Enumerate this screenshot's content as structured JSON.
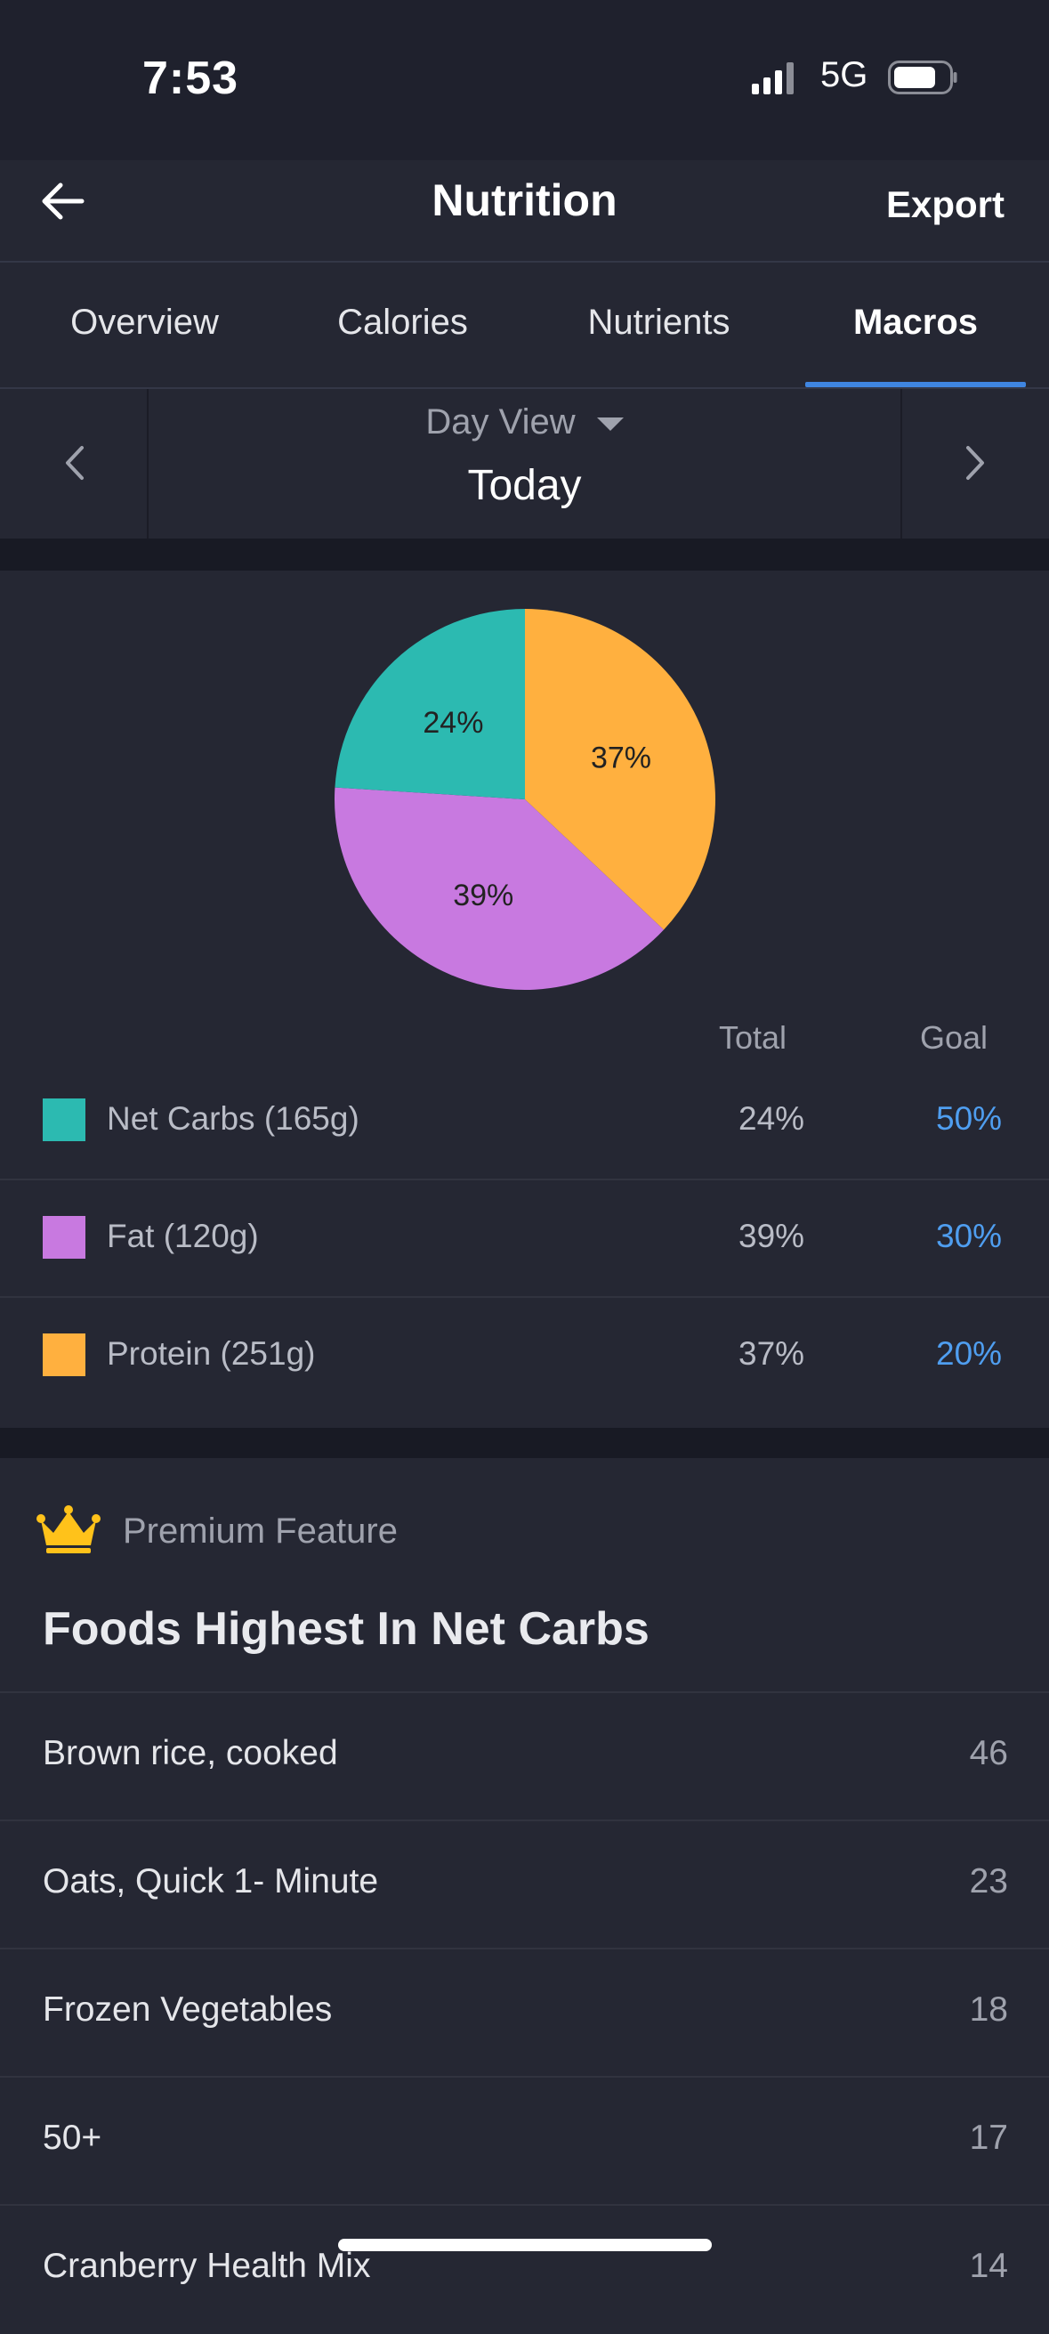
{
  "status_bar": {
    "time": "7:53",
    "network": "5G",
    "signal_icon": "signal-bars-icon",
    "battery_icon": "battery-icon"
  },
  "nav": {
    "title": "Nutrition",
    "export_label": "Export",
    "back_icon": "arrow-left-icon"
  },
  "tabs": [
    {
      "label": "Overview",
      "active": false
    },
    {
      "label": "Calories",
      "active": false
    },
    {
      "label": "Nutrients",
      "active": false
    },
    {
      "label": "Macros",
      "active": true
    }
  ],
  "day_selector": {
    "mode": "Day View",
    "date": "Today",
    "prev_icon": "chevron-left-icon",
    "next_icon": "chevron-right-icon"
  },
  "chart_data": {
    "type": "pie",
    "slices": [
      {
        "name": "Protein",
        "value": 37,
        "label": "37%",
        "color": "#ffb03f"
      },
      {
        "name": "Fat",
        "value": 39,
        "label": "39%",
        "color": "#c879e0"
      },
      {
        "name": "Net Carbs",
        "value": 24,
        "label": "24%",
        "color": "#2cbab1"
      }
    ]
  },
  "macro_table": {
    "headers": {
      "total": "Total",
      "goal": "Goal"
    },
    "rows": [
      {
        "label": "Net Carbs (165g)",
        "total": "24%",
        "goal": "50%",
        "color": "#2cbab1"
      },
      {
        "label": "Fat (120g)",
        "total": "39%",
        "goal": "30%",
        "color": "#c879e0"
      },
      {
        "label": "Protein (251g)",
        "total": "37%",
        "goal": "20%",
        "color": "#ffb03f"
      }
    ]
  },
  "premium": {
    "badge_label": "Premium Feature",
    "badge_icon": "crown-icon",
    "title": "Foods Highest In Net Carbs",
    "foods": [
      {
        "name": "Brown rice, cooked",
        "value": "46"
      },
      {
        "name": "Oats, Quick 1- Minute",
        "value": "23"
      },
      {
        "name": "Frozen Vegetables",
        "value": "18"
      },
      {
        "name": "50+",
        "value": "17"
      },
      {
        "name": "Cranberry Health Mix",
        "value": "14"
      }
    ]
  },
  "colors": {
    "accent": "#3f85e0",
    "goal_text": "#4f9ef0",
    "background": "#252733"
  }
}
